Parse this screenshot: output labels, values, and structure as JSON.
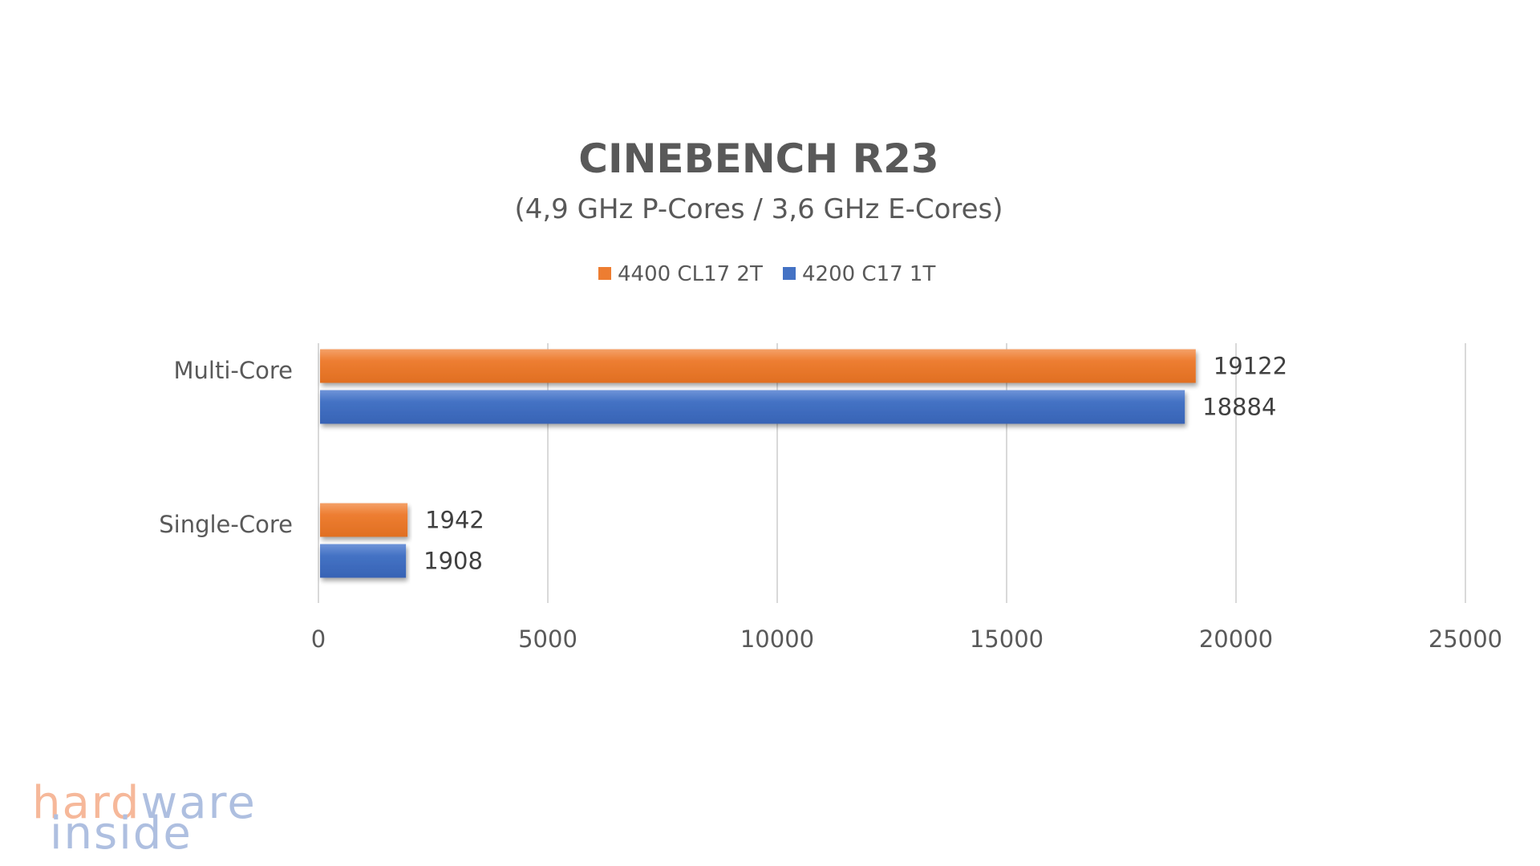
{
  "chart_data": {
    "type": "bar",
    "orientation": "horizontal",
    "title": "CINEBENCH R23",
    "subtitle": "(4,9 GHz P-Cores / 3,6 GHz E-Cores)",
    "categories": [
      "Multi-Core",
      "Single-Core"
    ],
    "series": [
      {
        "name": "4400 CL17 2T",
        "color": "#ed7d31",
        "values": [
          19122,
          1942
        ]
      },
      {
        "name": "4200 C17 1T",
        "color": "#4472c4",
        "values": [
          18884,
          1908
        ]
      }
    ],
    "xlim": [
      0,
      25000
    ],
    "xticks": [
      0,
      5000,
      10000,
      15000,
      20000,
      25000
    ],
    "xtick_labels": [
      "0",
      "5000",
      "10000",
      "15000",
      "20000",
      "25000"
    ],
    "grid": true,
    "legend_position": "top",
    "xlabel": "",
    "ylabel": ""
  },
  "watermark": {
    "line1_a": "hard",
    "line1_b": "ware",
    "line2": "inside",
    "color_a": "#f6b89a",
    "color_b": "#aebfe0"
  }
}
